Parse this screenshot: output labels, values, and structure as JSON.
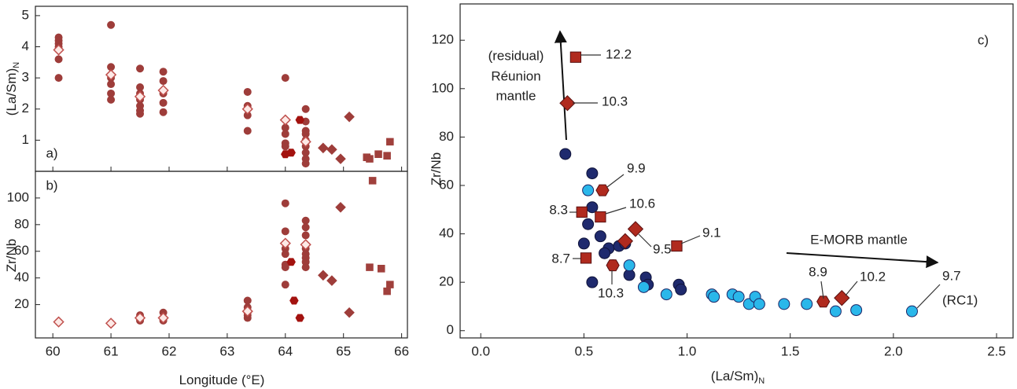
{
  "chart_data": [
    {
      "type": "scatter",
      "panel_label": "a)",
      "ylabel": "(La/Sm)",
      "ylabel_sub": "N",
      "xlim": [
        59.7,
        66.1
      ],
      "ylim": [
        0,
        5.3
      ],
      "xticks": [
        60,
        61,
        62,
        63,
        64,
        65,
        66
      ],
      "yticks": [
        1,
        2,
        3,
        4,
        5
      ],
      "xtick_labels": false,
      "series": [
        {
          "marker": "circle",
          "color": "#9e3d3a",
          "x": [
            60.1,
            60.1,
            60.1,
            60.1,
            60.1,
            60.1,
            61,
            61,
            61,
            61,
            61,
            61,
            61.5,
            61.5,
            61.5,
            61.5,
            61.5,
            61.5,
            61.5,
            61.9,
            61.9,
            61.9,
            61.9,
            61.9,
            63.35,
            63.35,
            63.35,
            63.35,
            64,
            64,
            64,
            64,
            64,
            64.35,
            64.35,
            64.35,
            64.35,
            64.35,
            64.35,
            64.35,
            64.35,
            64.35
          ],
          "values": [
            4.3,
            4.2,
            4.1,
            4.0,
            3.6,
            3.0,
            4.7,
            3.35,
            3.0,
            2.8,
            2.5,
            2.3,
            3.3,
            2.7,
            2.5,
            2.3,
            2.1,
            1.95,
            1.85,
            3.2,
            2.9,
            2.5,
            2.2,
            1.9,
            2.55,
            2.1,
            1.8,
            1.3,
            3.0,
            1.4,
            1.2,
            0.9,
            0.8,
            2.0,
            1.6,
            1.3,
            1.2,
            1.0,
            0.8,
            0.6,
            0.4,
            0.25
          ]
        },
        {
          "marker": "hexagon",
          "color": "#a3120f",
          "x": [
            64.25,
            64.0,
            64.1
          ],
          "values": [
            1.65,
            0.55,
            0.6
          ]
        },
        {
          "marker": "diamond",
          "color": "#9e3d3a",
          "x": [
            64.65,
            64.8,
            64.95,
            65.1
          ],
          "values": [
            0.75,
            0.7,
            0.4,
            1.75
          ]
        },
        {
          "marker": "square",
          "color": "#a0403c",
          "x": [
            65.4,
            65.45,
            65.6,
            65.75,
            65.8
          ],
          "values": [
            0.45,
            0.4,
            0.55,
            0.5,
            0.95
          ]
        },
        {
          "marker": "diamond",
          "open": true,
          "color": "#c0504d",
          "x": [
            60.1,
            61,
            61.5,
            61.9,
            63.35,
            64,
            64.35
          ],
          "values": [
            3.9,
            3.1,
            2.4,
            2.6,
            2.0,
            1.65,
            0.95
          ]
        }
      ]
    },
    {
      "type": "scatter",
      "panel_label": "b)",
      "ylabel": "Zr/Nb",
      "xlabel": "Longitude (°E)",
      "xlim": [
        59.7,
        66.1
      ],
      "ylim": [
        -5,
        120
      ],
      "xticks": [
        60,
        61,
        62,
        63,
        64,
        65,
        66
      ],
      "yticks": [
        20,
        40,
        60,
        80,
        100
      ],
      "xtick_labels": true,
      "series": [
        {
          "marker": "circle",
          "color": "#9e3d3a",
          "x": [
            64,
            64,
            64,
            64,
            64,
            64,
            64,
            64.35,
            64.35,
            64.35,
            64.35,
            64.35,
            64.35,
            64.35,
            64.35,
            63.35,
            63.35,
            63.35,
            63.35,
            63.35,
            60.1,
            61,
            61.5,
            61.5,
            61.5,
            61.9,
            61.9,
            61.9
          ],
          "values": [
            96,
            75,
            62,
            58,
            50,
            48,
            35,
            83,
            78,
            72,
            62,
            58,
            55,
            52,
            48,
            23,
            18,
            14,
            12,
            10,
            7,
            6,
            12,
            10,
            8,
            14,
            10,
            8
          ]
        },
        {
          "marker": "hexagon",
          "color": "#a3120f",
          "x": [
            64.1,
            64.15,
            64.25
          ],
          "values": [
            52,
            23,
            10
          ]
        },
        {
          "marker": "diamond",
          "color": "#9e3d3a",
          "x": [
            64.65,
            64.8,
            64.95,
            65.1
          ],
          "values": [
            42,
            38,
            93,
            14
          ]
        },
        {
          "marker": "square",
          "color": "#a0403c",
          "x": [
            65.45,
            65.5,
            65.65,
            65.75,
            65.8
          ],
          "values": [
            48,
            113,
            47,
            30,
            35
          ]
        },
        {
          "marker": "diamond",
          "open": true,
          "color": "#c0504d",
          "x": [
            60.1,
            61,
            61.5,
            61.9,
            63.35,
            64,
            64.35
          ],
          "values": [
            7,
            6,
            10,
            10,
            15,
            66,
            65
          ]
        }
      ]
    },
    {
      "type": "scatter",
      "panel_label": "c)",
      "ylabel": "Zr/Nb",
      "xlabel": "(La/Sm)",
      "xlabel_sub": "N",
      "xlim": [
        -0.1,
        2.58
      ],
      "ylim": [
        -3,
        135
      ],
      "xticks": [
        {
          "value": 0,
          "label": "0.0"
        },
        {
          "value": 0.5,
          "label": "0.5"
        },
        {
          "value": 1,
          "label": "1.0"
        },
        {
          "value": 1.5,
          "label": "1.5"
        },
        {
          "value": 2,
          "label": "2.0"
        },
        {
          "value": 2.5,
          "label": "2.5"
        }
      ],
      "yticks": [
        0,
        20,
        40,
        60,
        80,
        100,
        120
      ],
      "xtick_labels": true,
      "series": [
        {
          "marker": "circle",
          "color": "#1f2a6e",
          "edge": "#10143a",
          "x": [
            0.41,
            0.54,
            0.54,
            0.5,
            0.52,
            0.58,
            0.54,
            0.62,
            0.6,
            0.67,
            0.64,
            0.7,
            0.72,
            0.8,
            0.81,
            0.96,
            0.97
          ],
          "values": [
            73,
            65,
            51,
            36,
            44,
            39,
            20,
            34,
            32,
            35,
            27,
            36,
            23,
            22,
            19,
            19,
            17
          ]
        },
        {
          "marker": "circle",
          "color": "#2ab7ea",
          "edge": "#1c2566",
          "x": [
            0.52,
            0.72,
            0.79,
            0.9,
            1.12,
            1.13,
            1.22,
            1.25,
            1.3,
            1.33,
            1.35,
            1.47,
            1.58,
            1.72,
            1.82,
            2.09
          ],
          "values": [
            58,
            27,
            18,
            15,
            15,
            14,
            15,
            14,
            11,
            14,
            11,
            11,
            11,
            8,
            8.5,
            8
          ]
        },
        {
          "marker": "square",
          "color": "#b02a1e",
          "edge": "#5a1010",
          "x": [
            0.46,
            0.51,
            0.49,
            0.58,
            0.95
          ],
          "values": [
            113,
            30,
            49,
            47,
            35
          ]
        },
        {
          "marker": "diamond",
          "color": "#b02a1e",
          "edge": "#5a1010",
          "x": [
            0.42,
            0.7,
            0.75,
            1.75
          ],
          "values": [
            94,
            37,
            42,
            13.5
          ]
        },
        {
          "marker": "hexagon",
          "color": "#b02a1e",
          "edge": "#5a1010",
          "x": [
            0.59,
            0.64,
            1.66
          ],
          "values": [
            58,
            27,
            12
          ]
        }
      ],
      "point_labels": [
        "12.2",
        "10.3",
        "9.9",
        "8.3",
        "10.6",
        "9.5",
        "9.1",
        "8.7",
        "10.3",
        "8.9",
        "10.2",
        "9.7",
        "(RC1)"
      ],
      "annotations": [
        "(residual)",
        "Réunion",
        "mantle",
        "E-MORB mantle"
      ]
    }
  ]
}
